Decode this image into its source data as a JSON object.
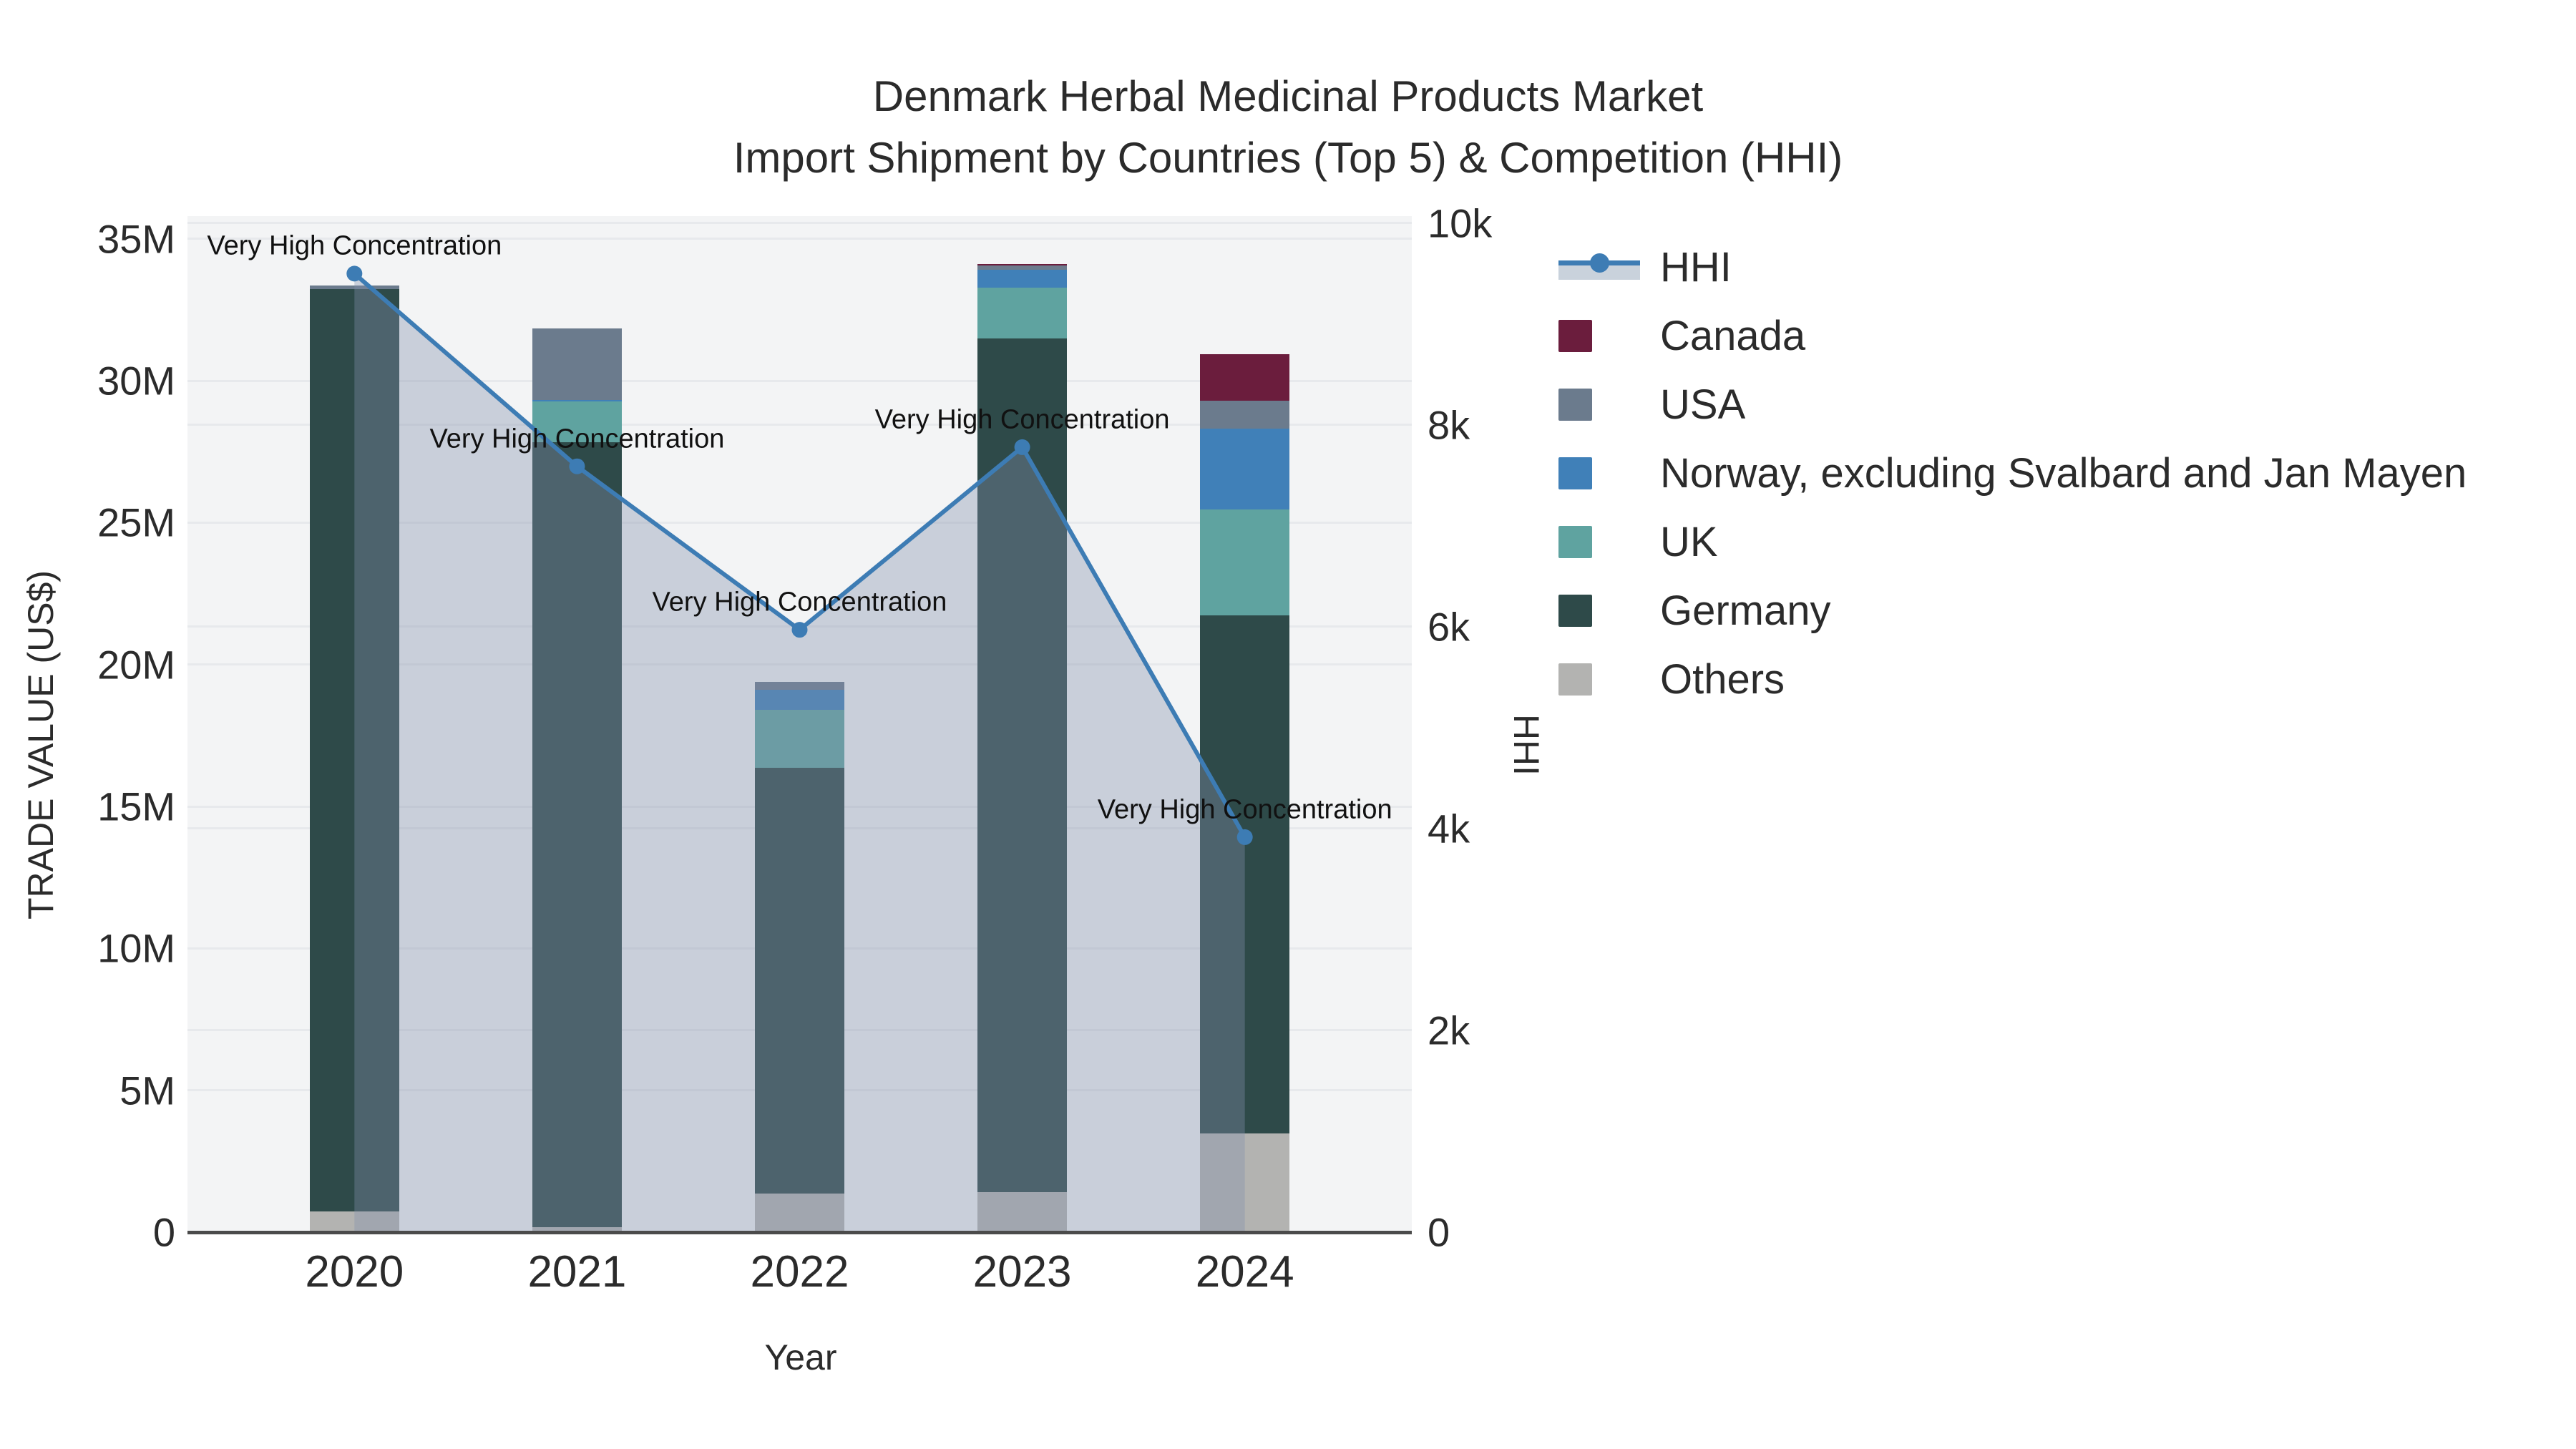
{
  "title": {
    "line1": "Denmark Herbal Medicinal Products Market",
    "line2": "Import Shipment by Countries (Top 5) & Competition (HHI)"
  },
  "axes": {
    "x": {
      "title": "Year",
      "min": 2019.25,
      "max": 2024.75,
      "ticks": [
        {
          "value": 2020,
          "label": "2020"
        },
        {
          "value": 2021,
          "label": "2021"
        },
        {
          "value": 2022,
          "label": "2022"
        },
        {
          "value": 2023,
          "label": "2023"
        },
        {
          "value": 2024,
          "label": "2024"
        }
      ]
    },
    "y_left": {
      "title": "TRADE VALUE (US$)",
      "min": 0,
      "max": 35800000,
      "ticks": [
        {
          "value": 0,
          "label": "0"
        },
        {
          "value": 5000000,
          "label": "5M"
        },
        {
          "value": 10000000,
          "label": "10M"
        },
        {
          "value": 15000000,
          "label": "15M"
        },
        {
          "value": 20000000,
          "label": "20M"
        },
        {
          "value": 25000000,
          "label": "25M"
        },
        {
          "value": 30000000,
          "label": "30M"
        },
        {
          "value": 35000000,
          "label": "35M"
        }
      ]
    },
    "y_right": {
      "title": "HHI",
      "min": 0,
      "max": 10070,
      "ticks": [
        {
          "value": 0,
          "label": "0"
        },
        {
          "value": 2000,
          "label": "2k"
        },
        {
          "value": 4000,
          "label": "4k"
        },
        {
          "value": 6000,
          "label": "6k"
        },
        {
          "value": 8000,
          "label": "8k"
        },
        {
          "value": 10000,
          "label": "10k"
        }
      ]
    }
  },
  "chart_data": {
    "type": "bar",
    "subtype": "stacked-bars-with-line",
    "categories": [
      2020,
      2021,
      2022,
      2023,
      2024
    ],
    "bar_width_years": 0.4,
    "series": [
      {
        "name": "Others",
        "color": "#b3b3b1",
        "values": [
          720000,
          180000,
          1360000,
          1400000,
          3480000
        ]
      },
      {
        "name": "Germany",
        "color": "#2e4a49",
        "values": [
          32500000,
          27650000,
          15000000,
          30100000,
          18260000
        ]
      },
      {
        "name": "UK",
        "color": "#5fa3a0",
        "values": [
          0,
          1450000,
          2050000,
          1770000,
          3730000
        ]
      },
      {
        "name": "Norway, excluding Svalbard and Jan Mayen",
        "color": "#4080b8",
        "values": [
          0,
          50000,
          700000,
          630000,
          2850000
        ]
      },
      {
        "name": "USA",
        "color": "#6b7b8d",
        "values": [
          130000,
          2500000,
          280000,
          150000,
          980000
        ]
      },
      {
        "name": "Canada",
        "color": "#6b1d3d",
        "values": [
          0,
          0,
          0,
          50000,
          1640000
        ]
      }
    ],
    "line_series": {
      "name": "HHI",
      "axis": "right",
      "color": "#3d7cb4",
      "fill_color": "rgba(130,143,170,0.37)",
      "marker_radius": 11,
      "stroke_width": 6,
      "values": [
        9500,
        7590,
        5970,
        7780,
        3915
      ]
    },
    "annotations": [
      {
        "x": 2020,
        "text": "Very High Concentration"
      },
      {
        "x": 2021,
        "text": "Very High Concentration"
      },
      {
        "x": 2022,
        "text": "Very High Concentration"
      },
      {
        "x": 2023,
        "text": "Very High Concentration"
      },
      {
        "x": 2024,
        "text": "Very High Concentration"
      }
    ],
    "xlabel": "Year",
    "ylabel_left": "TRADE VALUE (US$)",
    "ylabel_right": "HHI",
    "grid": true,
    "legend_position": "right"
  },
  "legend": {
    "items": [
      {
        "label": "HHI",
        "type": "line",
        "color": "#3d7cb4",
        "band": "#c9d2dc"
      },
      {
        "label": "Canada",
        "type": "swatch",
        "color": "#6b1d3d"
      },
      {
        "label": "USA",
        "type": "swatch",
        "color": "#6b7b8d"
      },
      {
        "label": "Norway, excluding Svalbard and Jan Mayen",
        "type": "swatch",
        "color": "#4080b8"
      },
      {
        "label": "UK",
        "type": "swatch",
        "color": "#5fa3a0"
      },
      {
        "label": "Germany",
        "type": "swatch",
        "color": "#2e4a49"
      },
      {
        "label": "Others",
        "type": "swatch",
        "color": "#b3b3b1"
      }
    ]
  }
}
